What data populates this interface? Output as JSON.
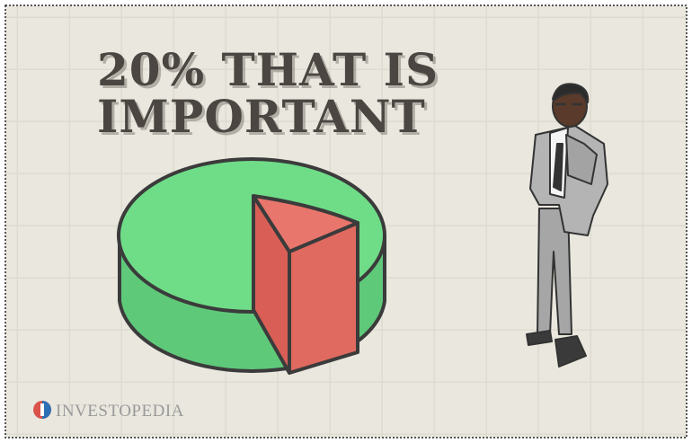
{
  "title": {
    "lines": [
      "20% THAT IS",
      "IMPORTANT"
    ]
  },
  "logo": {
    "text": "INVESTOPEDIA"
  }
}
